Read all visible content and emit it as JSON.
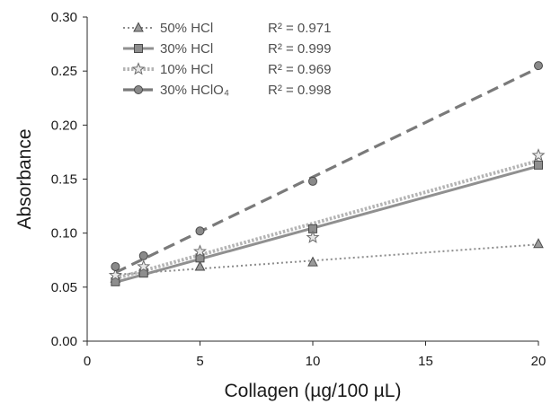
{
  "chart_data": {
    "type": "scatter",
    "xlabel": "Collagen (µg/100 µL)",
    "ylabel": "Absorbance",
    "xlim": [
      0,
      20
    ],
    "ylim": [
      0,
      0.3
    ],
    "xticks": [
      "0",
      "5",
      "10",
      "15",
      "20"
    ],
    "yticks": [
      "0.00",
      "0.05",
      "0.10",
      "0.15",
      "0.20",
      "0.25",
      "0.30"
    ],
    "grid": false,
    "legend_position": "top-left",
    "series": [
      {
        "name": "50% HCl",
        "r2": "R² = 0.971",
        "marker": "triangle",
        "line_style": "dotted",
        "color": "#8c8c8c",
        "x": [
          1.25,
          2.5,
          5,
          10,
          20
        ],
        "y": [
          0.058,
          0.065,
          0.069,
          0.073,
          0.09
        ],
        "trend": [
          0.0615,
          0.0895
        ]
      },
      {
        "name": "30% HCl",
        "r2": "R² = 0.999",
        "marker": "square",
        "line_style": "solid",
        "color": "#909090",
        "x": [
          1.25,
          2.5,
          5,
          10,
          20
        ],
        "y": [
          0.055,
          0.063,
          0.077,
          0.104,
          0.163
        ],
        "trend": [
          0.0545,
          0.162
        ]
      },
      {
        "name": "10% HCl",
        "r2": "R² = 0.969",
        "marker": "star",
        "line_style": "dotted-thick",
        "color": "#b4b4b4",
        "x": [
          1.25,
          2.5,
          5,
          10,
          20
        ],
        "y": [
          0.061,
          0.069,
          0.083,
          0.096,
          0.172
        ],
        "trend": [
          0.058,
          0.167
        ]
      },
      {
        "name": "30% HClO₄",
        "r2": "R² = 0.998",
        "marker": "circle",
        "line_style": "dashed",
        "color": "#7a7a7a",
        "x": [
          1.25,
          2.5,
          5,
          10,
          20
        ],
        "y": [
          0.069,
          0.079,
          0.102,
          0.148,
          0.255
        ],
        "trend": [
          0.0635,
          0.253
        ]
      }
    ]
  }
}
